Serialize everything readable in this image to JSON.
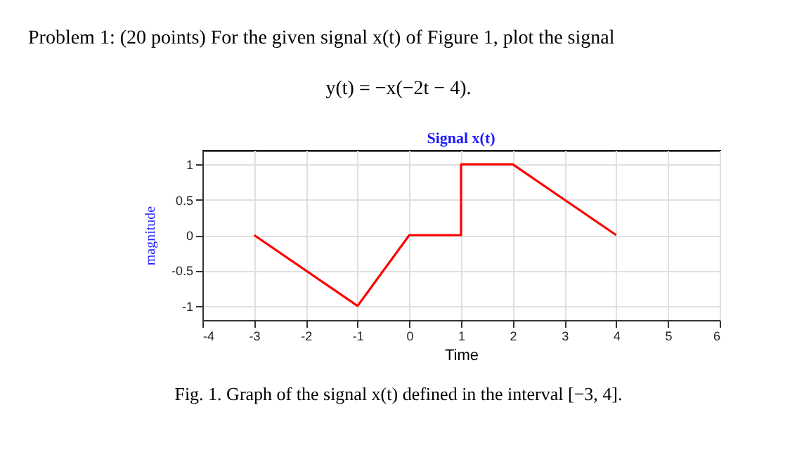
{
  "chart_data": {
    "type": "line",
    "title": "Signal x(t)",
    "xlabel": "Time",
    "ylabel": "magnitude",
    "x": [
      -3,
      -1,
      0,
      1,
      1,
      2,
      4
    ],
    "series": [
      {
        "color": "#ff0000",
        "values": [
          0,
          -1,
          0,
          0,
          1,
          1,
          0
        ]
      }
    ],
    "xlim": [
      -4,
      6
    ],
    "xticks": [
      -4,
      -3,
      -2,
      -1,
      0,
      1,
      2,
      3,
      4,
      5,
      6
    ],
    "ylim": [
      -1.2,
      1.2
    ],
    "yticks": [
      -1,
      -0.5,
      0,
      0.5,
      1
    ],
    "grid": true,
    "annotations": [
      "Problem 1: (20 points) For the given signal x(t) of Figure 1, plot the signal",
      "y(t) = −x(−2t − 4).",
      "Fig. 1.  Graph of the signal x(t) defined in the interval [−3, 4]."
    ]
  }
}
